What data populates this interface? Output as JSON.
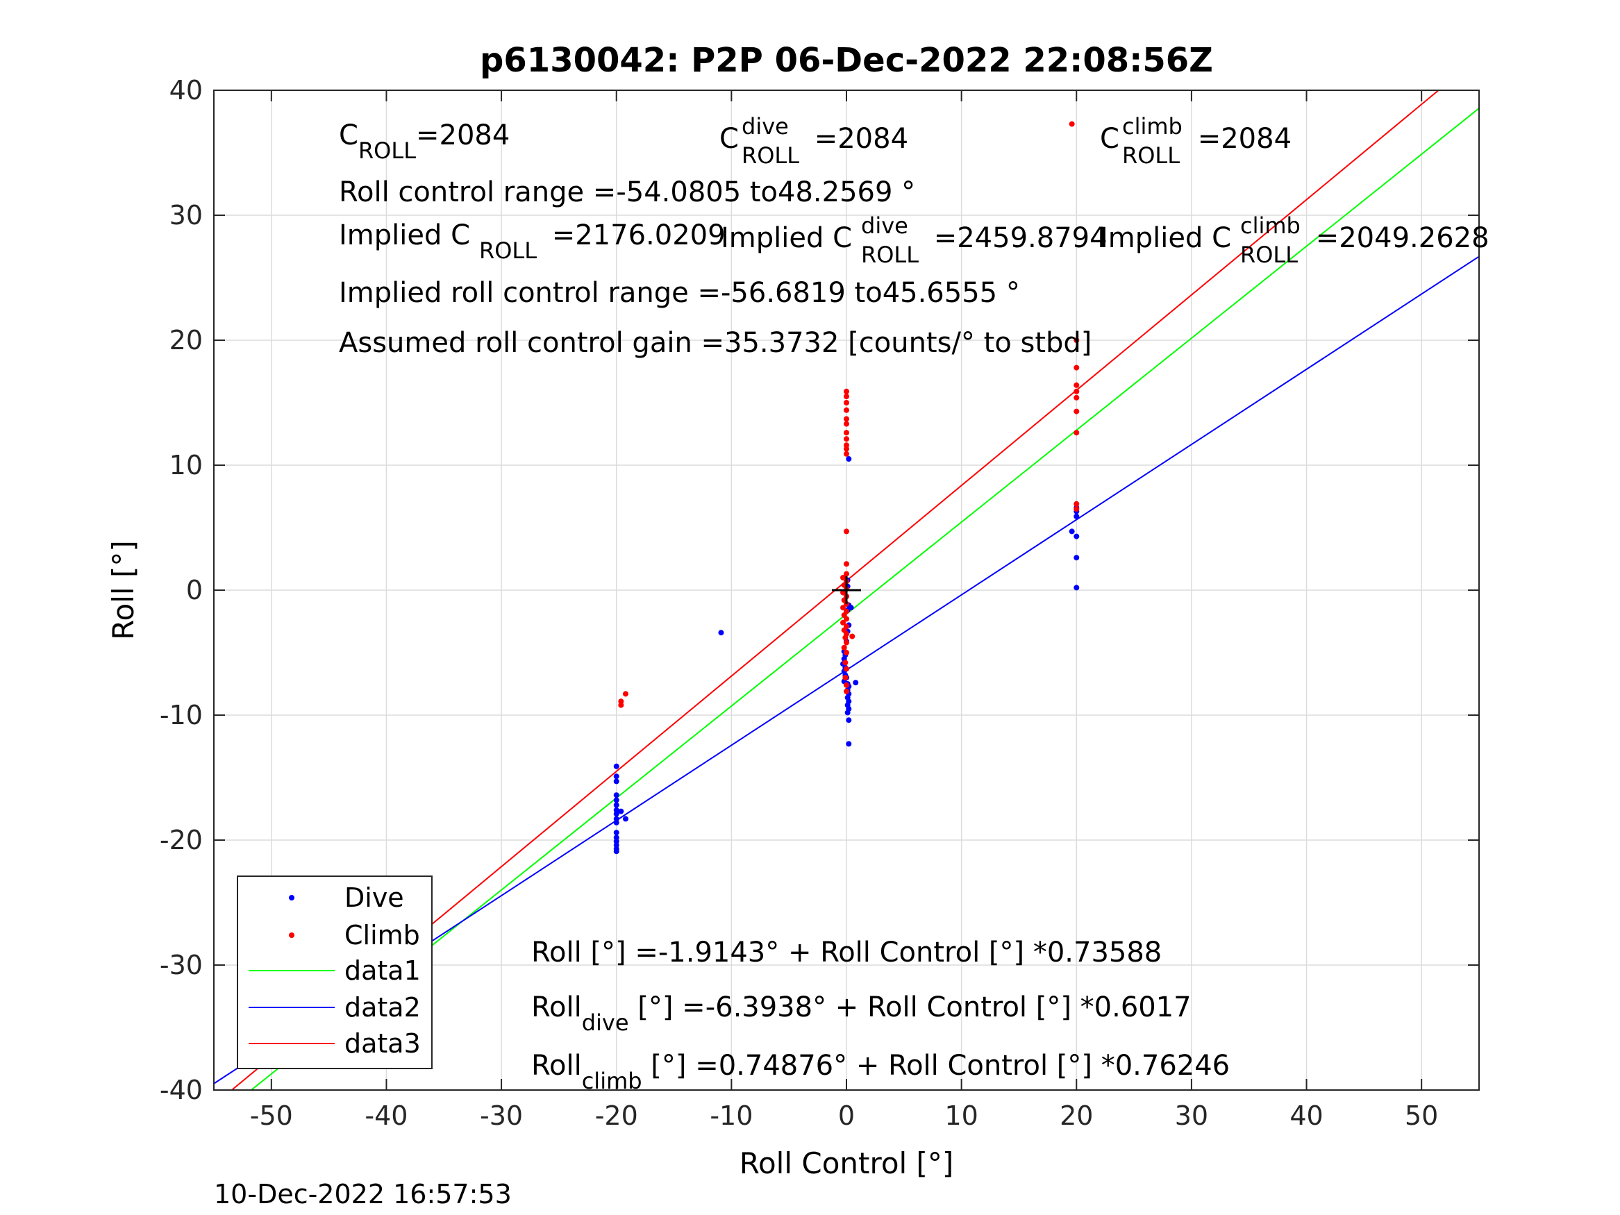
{
  "chart_data": {
    "type": "scatter",
    "title": "p6130042: P2P 06-Dec-2022 22:08:56Z",
    "xlabel": "Roll Control [°]",
    "ylabel": "Roll [°]",
    "xlim": [
      -55,
      55
    ],
    "ylim": [
      -40,
      40
    ],
    "xticks": [
      -50,
      -40,
      -30,
      -20,
      -10,
      0,
      10,
      20,
      30,
      40,
      50
    ],
    "yticks": [
      -40,
      -30,
      -20,
      -10,
      0,
      10,
      20,
      30,
      40
    ],
    "grid": true,
    "timestamp": "10-Dec-2022 16:57:53",
    "legend": {
      "position": "bottom-left",
      "entries": [
        "Dive",
        "Climb",
        "data1",
        "data2",
        "data3"
      ]
    },
    "annotations": {
      "c_roll": {
        "base": "C",
        "sub": "ROLL",
        "value": "=2084"
      },
      "c_roll_dive": {
        "base": "C",
        "sup": "dive",
        "sub": "ROLL",
        "value": " =2084"
      },
      "c_roll_climb": {
        "base": "C",
        "sup": "climb",
        "sub": "ROLL",
        "value": " =2084"
      },
      "range": "Roll control range =-54.0805 to48.2569 °",
      "implied_c_roll": {
        "base": "Implied C",
        "sub": "ROLL",
        "value": " =2176.0209"
      },
      "implied_c_roll_dive": {
        "base": "Implied C",
        "sup": "dive",
        "sub": "ROLL",
        "value": " =2459.8794"
      },
      "implied_c_roll_climb": {
        "base": "Implied C",
        "sup": "climb",
        "sub": "ROLL",
        "value": " =2049.2628"
      },
      "implied_range": "Implied roll control range =-56.6819 to45.6555 °",
      "gain": "Assumed roll control gain =35.3732 [counts/° to stbd]",
      "eq_all": {
        "base": "Roll [°] =-1.9143° + Roll Control [°] *0.73588"
      },
      "eq_dive": {
        "base": "Roll",
        "sub": "dive",
        "value": " [°] =-6.3938° + Roll Control [°] *0.6017"
      },
      "eq_climb": {
        "base": "Roll",
        "sub": "climb",
        "value": " [°] =0.74876° + Roll Control [°] *0.76246"
      }
    },
    "series": [
      {
        "name": "Dive",
        "kind": "points",
        "color": "#0000ff",
        "points": [
          [
            -20,
            -14.1
          ],
          [
            -20,
            -14.9
          ],
          [
            -20,
            -15.3
          ],
          [
            -20,
            -16.4
          ],
          [
            -20,
            -16.8
          ],
          [
            -20,
            -17.2
          ],
          [
            -20,
            -17.6
          ],
          [
            -20,
            -17.9
          ],
          [
            -20,
            -18.3
          ],
          [
            -20,
            -18.6
          ],
          [
            -20,
            -19.4
          ],
          [
            -20,
            -19.8
          ],
          [
            -20,
            -20.1
          ],
          [
            -20,
            -20.4
          ],
          [
            -20,
            -20.7
          ],
          [
            -20,
            -20.9
          ],
          [
            -19.6,
            -17.7
          ],
          [
            -19.2,
            -18.3
          ],
          [
            -10.9,
            -3.4
          ],
          [
            0.2,
            10.5
          ],
          [
            0.1,
            0.3
          ],
          [
            0.1,
            0.8
          ],
          [
            0.2,
            -1.2
          ],
          [
            0.1,
            -1.6
          ],
          [
            0.2,
            -2.8
          ],
          [
            0.1,
            -3.3
          ],
          [
            0,
            -4.1
          ],
          [
            -0.2,
            -4.9
          ],
          [
            -0.1,
            -5.2
          ],
          [
            -0.2,
            -5.5
          ],
          [
            -0.3,
            -5.9
          ],
          [
            -0.1,
            -6.2
          ],
          [
            -0.2,
            -6.5
          ],
          [
            -0.1,
            -6.8
          ],
          [
            0,
            -7.0
          ],
          [
            -0.2,
            -7.3
          ],
          [
            0.1,
            -7.5
          ],
          [
            0.2,
            -7.7
          ],
          [
            0.1,
            -8.0
          ],
          [
            0.2,
            -8.3
          ],
          [
            0.1,
            -8.6
          ],
          [
            0.2,
            -8.9
          ],
          [
            0.1,
            -9.2
          ],
          [
            0.2,
            -9.5
          ],
          [
            0.1,
            -9.8
          ],
          [
            0.2,
            -10.4
          ],
          [
            0.2,
            -12.3
          ],
          [
            0.8,
            -7.4
          ],
          [
            0.4,
            -1.4
          ],
          [
            20,
            6.6
          ],
          [
            20,
            6.3
          ],
          [
            20,
            5.9
          ],
          [
            20,
            4.3
          ],
          [
            19.6,
            4.7
          ],
          [
            20,
            2.6
          ],
          [
            20,
            0.2
          ]
        ]
      },
      {
        "name": "Climb",
        "kind": "points",
        "color": "#ff0000",
        "points": [
          [
            -19.2,
            -8.3
          ],
          [
            -19.6,
            -8.9
          ],
          [
            -19.6,
            -9.2
          ],
          [
            0,
            15.9
          ],
          [
            0,
            15.5
          ],
          [
            0,
            15.0
          ],
          [
            0,
            14.4
          ],
          [
            0,
            13.7
          ],
          [
            0,
            13.3
          ],
          [
            0,
            12.6
          ],
          [
            0,
            12.1
          ],
          [
            0,
            11.6
          ],
          [
            0,
            11.3
          ],
          [
            0,
            10.9
          ],
          [
            0,
            4.7
          ],
          [
            0,
            2.1
          ],
          [
            0,
            1.3
          ],
          [
            -0.3,
            1.0
          ],
          [
            0,
            0.7
          ],
          [
            -0.2,
            0.4
          ],
          [
            0,
            0.1
          ],
          [
            -0.3,
            -0.2
          ],
          [
            0,
            -0.5
          ],
          [
            -0.2,
            -0.8
          ],
          [
            0,
            -1.1
          ],
          [
            -0.3,
            -1.4
          ],
          [
            0,
            -1.7
          ],
          [
            -0.2,
            -2.0
          ],
          [
            0,
            -2.3
          ],
          [
            -0.3,
            -2.6
          ],
          [
            0,
            -2.9
          ],
          [
            -0.2,
            -3.2
          ],
          [
            0,
            -3.5
          ],
          [
            -0.1,
            -3.8
          ],
          [
            0,
            -4.2
          ],
          [
            -0.2,
            -4.6
          ],
          [
            0,
            -5.0
          ],
          [
            -0.1,
            -5.8
          ],
          [
            0,
            -6.3
          ],
          [
            -0.1,
            -7.0
          ],
          [
            0,
            -7.6
          ],
          [
            0,
            -8.1
          ],
          [
            0.5,
            -3.7
          ],
          [
            19.6,
            37.3
          ],
          [
            20,
            20.0
          ],
          [
            20,
            17.8
          ],
          [
            20,
            16.4
          ],
          [
            20,
            15.9
          ],
          [
            20,
            15.4
          ],
          [
            20,
            14.3
          ],
          [
            20,
            12.6
          ],
          [
            20,
            6.9
          ],
          [
            20,
            6.5
          ]
        ]
      },
      {
        "name": "data1",
        "kind": "line",
        "color": "#00ff00",
        "intercept": -1.9143,
        "slope": 0.73588
      },
      {
        "name": "data2",
        "kind": "line",
        "color": "#0000ff",
        "intercept": -6.3938,
        "slope": 0.6017
      },
      {
        "name": "data3",
        "kind": "line",
        "color": "#ff0000",
        "intercept": 0.74876,
        "slope": 0.76246
      }
    ]
  }
}
